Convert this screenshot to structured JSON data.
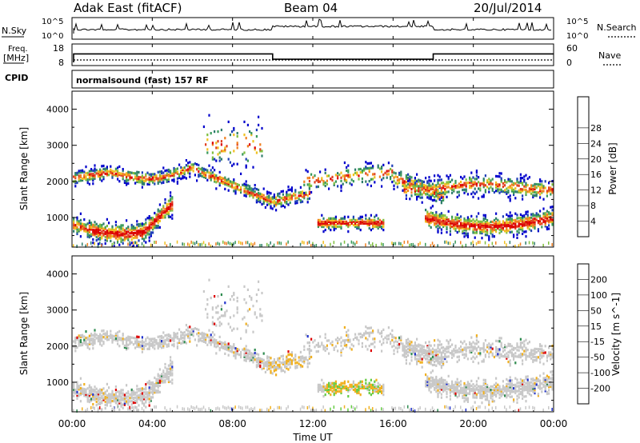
{
  "header": {
    "radar": "Adak East (fitACF)",
    "beam": "Beam 04",
    "date": "20/Jul/2014"
  },
  "panel_labels": {
    "nsky": "N.Sky",
    "nsearch": "N.Search",
    "freq_line1": "Freq.",
    "freq_line2": "[MHz]",
    "nave": "Nave",
    "cpid": "CPID",
    "cpid_text": "normalsound (fast) 157 RF"
  },
  "noise_ticks": {
    "top": "10^5",
    "bottom": "10^0"
  },
  "freq_ticks": [
    "18",
    "8"
  ],
  "nave_ticks": [
    "60",
    "0"
  ],
  "chart_data": {
    "type": "heatmap",
    "x_ticks": [
      "00:00",
      "04:00",
      "08:00",
      "12:00",
      "16:00",
      "20:00",
      "00:00"
    ],
    "xlabel": "Time UT",
    "ylabel": "Slant Range [km]",
    "y_ticks": [
      "1000",
      "2000",
      "3000",
      "4000"
    ],
    "ylim": [
      180,
      4500
    ],
    "frequency_segments": [
      {
        "start_hour": 0,
        "end_hour": 10,
        "mhz": 13.5
      },
      {
        "start_hour": 10,
        "end_hour": 18,
        "mhz": 10.5
      },
      {
        "start_hour": 18,
        "end_hour": 24,
        "mhz": 13.5
      }
    ],
    "power": {
      "colorbar_label": "Power [dB]",
      "ticks": [
        "4",
        "8",
        "12",
        "16",
        "20",
        "24",
        "28"
      ],
      "colors": [
        "#0000cc",
        "#1f3fb8",
        "#2e7d6b",
        "#3a9a5a",
        "#7fbf3f",
        "#f0c020",
        "#f08020",
        "#e04020",
        "#dd0000"
      ]
    },
    "velocity": {
      "colorbar_label": "Velocity [m s^-1]",
      "ticks": [
        "200",
        "100",
        "50",
        "15",
        "-15",
        "-50",
        "-100",
        "-200"
      ],
      "colors": [
        "#2233cc",
        "#3060a8",
        "#2f8c50",
        "#66cc44",
        "#c8c8c8",
        "#f0b020",
        "#f08020",
        "#e84020",
        "#dd0000"
      ]
    }
  }
}
